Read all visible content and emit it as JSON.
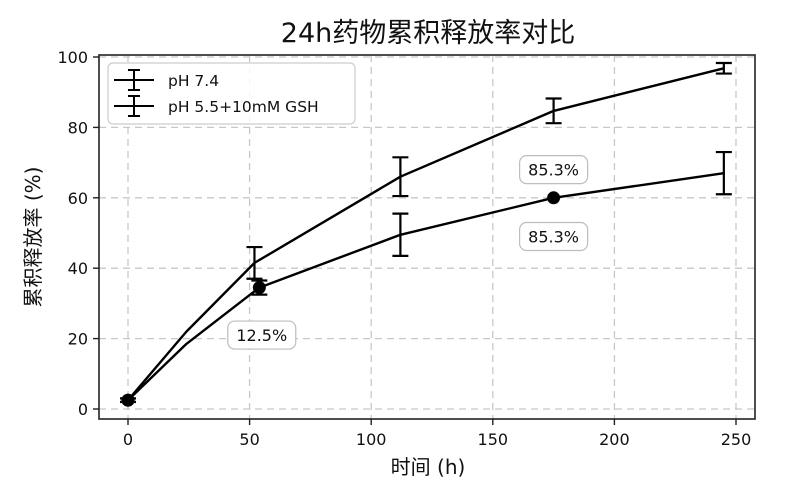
{
  "chart_data": {
    "type": "line",
    "title": "24h药物累积释放率对比",
    "xlabel": "时间 (h)",
    "ylabel": "累积释放率 (%)",
    "xlim": [
      -12,
      262
    ],
    "ylim": [
      -3,
      101.5
    ],
    "xticks": [
      0,
      50,
      100,
      150,
      200,
      250
    ],
    "yticks": [
      0,
      20,
      40,
      60,
      80,
      100
    ],
    "grid": true,
    "grid_style": "dashed",
    "legend_position": "upper left",
    "series": [
      {
        "name": "pH 7.4",
        "x": [
          0,
          24,
          54,
          112,
          175,
          245
        ],
        "values": [
          2.5,
          18.5,
          34.5,
          49.5,
          60.0,
          67.0
        ],
        "errors": [
          0.5,
          null,
          2.0,
          6.0,
          null,
          6.0
        ],
        "markers_at": [
          0,
          54,
          175
        ],
        "color": "#000000"
      },
      {
        "name": "pH 5.5+10mM GSH",
        "x": [
          0,
          24,
          52,
          112,
          175,
          245
        ],
        "values": [
          2.5,
          22.0,
          41.5,
          66.0,
          84.7,
          96.8
        ],
        "errors": [
          0.5,
          null,
          4.5,
          5.5,
          3.5,
          1.5
        ],
        "markers_at": [
          0
        ],
        "color": "#000000"
      }
    ],
    "annotations": [
      {
        "text": "12.5%",
        "x": 55,
        "y": 21
      },
      {
        "text": "85.3%",
        "x": 175,
        "y": 68
      },
      {
        "text": "85.3%",
        "x": 175,
        "y": 49
      }
    ]
  }
}
